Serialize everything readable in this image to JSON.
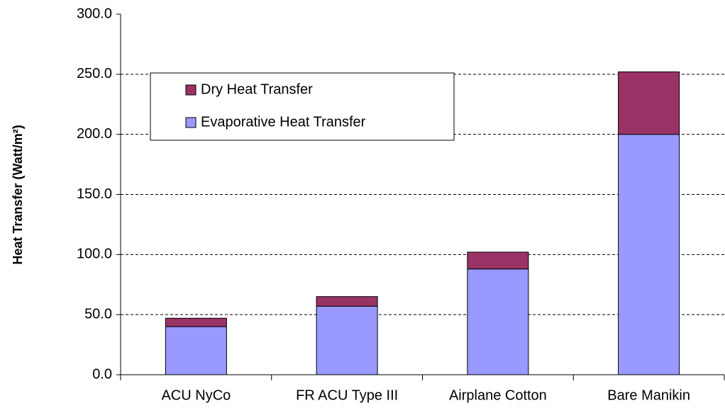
{
  "chart_data": {
    "type": "stacked_bar",
    "y_label": "Heat Transfer (Watt/m²)",
    "categories": [
      "ACU NyCo",
      "FR ACU Type III",
      "Airplane Cotton",
      "Bare Manikin"
    ],
    "series": [
      {
        "name": "Evaporative Heat Transfer",
        "color": "#9999ff",
        "values": [
          40,
          57,
          88,
          200
        ]
      },
      {
        "name": "Dry Heat Transfer",
        "color": "#993366",
        "values": [
          7,
          8,
          14,
          52
        ]
      }
    ],
    "ylim": [
      0,
      300
    ],
    "yticks": [
      {
        "value": 0,
        "label": "0.0"
      },
      {
        "value": 50,
        "label": "50.0"
      },
      {
        "value": 100,
        "label": "100.0"
      },
      {
        "value": 150,
        "label": "150.0"
      },
      {
        "value": 200,
        "label": "200.0"
      },
      {
        "value": 250,
        "label": "250.0"
      },
      {
        "value": 300,
        "label": "300.0"
      }
    ],
    "grid": true
  }
}
